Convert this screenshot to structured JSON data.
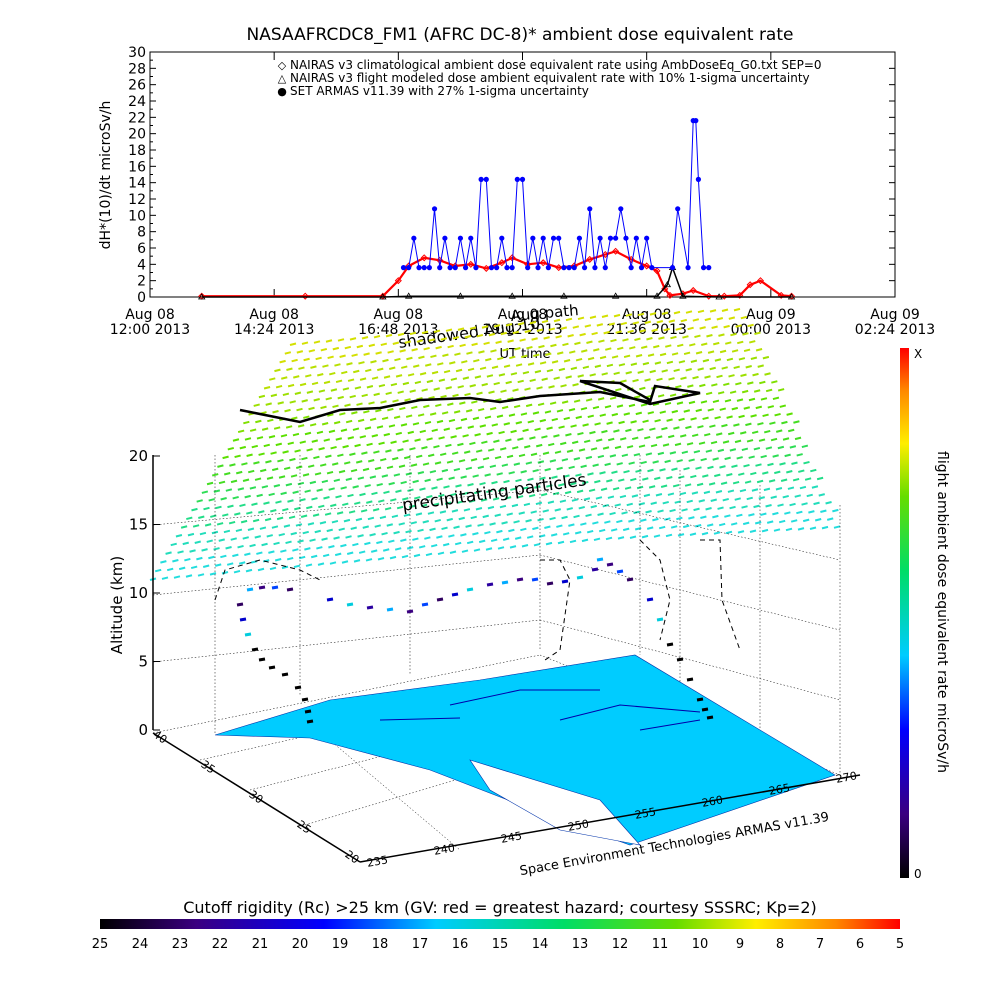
{
  "chart_data": [
    {
      "type": "line",
      "title": "NASAAFRCDC8_FM1 (AFRC DC-8)* ambient dose equivalent rate",
      "ylabel": "dH*(10)/dt microSv/h",
      "xlabel": "UT time",
      "ylim": [
        0,
        30
      ],
      "yticks": [
        "0",
        "2",
        "4",
        "6",
        "8",
        "10",
        "12",
        "14",
        "16",
        "18",
        "20",
        "22",
        "24",
        "26",
        "28",
        "30"
      ],
      "xticks": [
        {
          "line1": "Aug 08",
          "line2": "12:00 2013"
        },
        {
          "line1": "Aug 08",
          "line2": "14:24 2013"
        },
        {
          "line1": "Aug 08",
          "line2": "16:48 2013"
        },
        {
          "line1": "Aug 08",
          "line2": "19:12 2013"
        },
        {
          "line1": "Aug 08",
          "line2": "21:36 2013"
        },
        {
          "line1": "Aug 09",
          "line2": "00:00 2013"
        },
        {
          "line1": "Aug 09",
          "line2": "02:24 2013"
        }
      ],
      "xlim_hours": [
        12.0,
        26.4
      ],
      "legend": [
        {
          "symbol": "◇",
          "color": "#ff0000",
          "label": "NAIRAS v3 climatological ambient dose equivalent rate using AmbDoseEq_G0.txt SEP=0"
        },
        {
          "symbol": "△",
          "color": "#000000",
          "label": "NAIRAS v3 flight modeled dose ambient equivalent rate with 10% 1-sigma uncertainty"
        },
        {
          "symbol": "●",
          "color": "#0000ff",
          "label": "SET ARMAS v11.39 with 27% 1-sigma uncertainty"
        }
      ],
      "series": [
        {
          "name": "NAIRAS v3 climatological ambient dose equivalent rate using AmbDoseEq_G0.txt SEP=0",
          "color": "#ff0000",
          "x_hours": [
            13.0,
            15.0,
            16.5,
            16.8,
            17.0,
            17.3,
            17.6,
            17.9,
            18.2,
            18.5,
            18.8,
            19.0,
            19.3,
            19.6,
            19.9,
            20.2,
            20.5,
            20.8,
            21.0,
            21.3,
            21.6,
            21.8,
            21.95,
            22.05,
            22.3,
            22.5,
            22.8,
            23.1,
            23.4,
            23.6,
            23.8,
            24.2,
            24.4
          ],
          "values": [
            0.1,
            0.1,
            0.1,
            2.0,
            3.8,
            4.8,
            4.5,
            3.8,
            4.0,
            3.5,
            4.2,
            4.8,
            4.0,
            4.2,
            3.6,
            3.8,
            4.6,
            5.2,
            5.6,
            4.6,
            3.8,
            3.2,
            1.0,
            0.2,
            0.4,
            0.8,
            0.1,
            0.1,
            0.2,
            1.5,
            2.0,
            0.2,
            0.1
          ]
        },
        {
          "name": "NAIRAS v3 flight modeled dose ambient equivalent rate with 10% 1-sigma uncertainty",
          "color": "#000000",
          "x_hours": [
            13.0,
            16.5,
            17.0,
            18.0,
            19.0,
            20.0,
            21.0,
            21.8,
            22.0,
            22.1,
            22.3,
            23.0,
            24.4
          ],
          "values": [
            0.0,
            0.0,
            0.1,
            0.1,
            0.1,
            0.1,
            0.1,
            0.1,
            1.5,
            3.6,
            0.1,
            0.0,
            0.0
          ]
        },
        {
          "name": "SET ARMAS v11.39 with 27% 1-sigma uncertainty",
          "color": "#0000ff",
          "x_hours": [
            16.9,
            17.0,
            17.1,
            17.2,
            17.3,
            17.4,
            17.5,
            17.6,
            17.7,
            17.8,
            17.9,
            18.0,
            18.1,
            18.2,
            18.3,
            18.4,
            18.5,
            18.6,
            18.7,
            18.8,
            18.9,
            19.0,
            19.1,
            19.2,
            19.3,
            19.4,
            19.5,
            19.6,
            19.7,
            19.8,
            19.9,
            20.0,
            20.1,
            20.2,
            20.3,
            20.4,
            20.5,
            20.6,
            20.7,
            20.8,
            20.9,
            21.0,
            21.1,
            21.2,
            21.3,
            21.4,
            21.5,
            21.6,
            21.7,
            22.1,
            22.2,
            22.4,
            22.5,
            22.55,
            22.6,
            22.7,
            22.8
          ],
          "values": [
            3.6,
            3.6,
            7.2,
            3.6,
            3.6,
            3.6,
            10.8,
            3.6,
            7.2,
            3.6,
            3.6,
            7.2,
            3.6,
            7.2,
            3.6,
            14.4,
            14.4,
            3.6,
            3.6,
            7.2,
            3.6,
            3.6,
            14.4,
            14.4,
            3.6,
            7.2,
            3.6,
            7.2,
            3.6,
            7.2,
            7.2,
            3.6,
            3.6,
            3.6,
            7.2,
            3.6,
            10.8,
            3.6,
            7.2,
            3.6,
            7.2,
            7.2,
            10.8,
            7.2,
            3.6,
            7.2,
            3.6,
            7.2,
            3.6,
            3.6,
            10.8,
            3.6,
            21.6,
            21.6,
            14.4,
            3.6,
            3.6
          ]
        }
      ]
    },
    {
      "type": "scatter",
      "panel": "3d",
      "ylabel": "Altitude (km)",
      "zticks": [
        "0",
        "5",
        "10",
        "15",
        "20"
      ],
      "lat_ticks": [
        "40",
        "35",
        "30",
        "25",
        "20"
      ],
      "lon_ticks": [
        "235",
        "240",
        "245",
        "250",
        "255",
        "260",
        "265",
        "270"
      ],
      "annotations": [
        "precipitating particles",
        "Aug path",
        "shadowed Aug 10",
        "Space Environment Technologies ARMAS v11.39"
      ],
      "colorbar_right": {
        "label": "flight ambient dose equivalent rate microSv/h",
        "top": "X",
        "bottom": "0"
      },
      "colorbar_bottom": {
        "label": "Cutoff rigidity (Rc) >25 km (GV: red = greatest hazard; courtesy SSSRC; Kp=2)",
        "ticks": [
          "25",
          "24",
          "23",
          "22",
          "21",
          "20",
          "19",
          "18",
          "17",
          "16",
          "15",
          "14",
          "13",
          "12",
          "11",
          "10",
          "9",
          "8",
          "7",
          "6",
          "5"
        ]
      }
    }
  ],
  "colors": {
    "nairas_clim": "#ff0000",
    "nairas_flight": "#000000",
    "armas": "#0000ff",
    "land": "#00ccff",
    "grid": "#000000"
  }
}
